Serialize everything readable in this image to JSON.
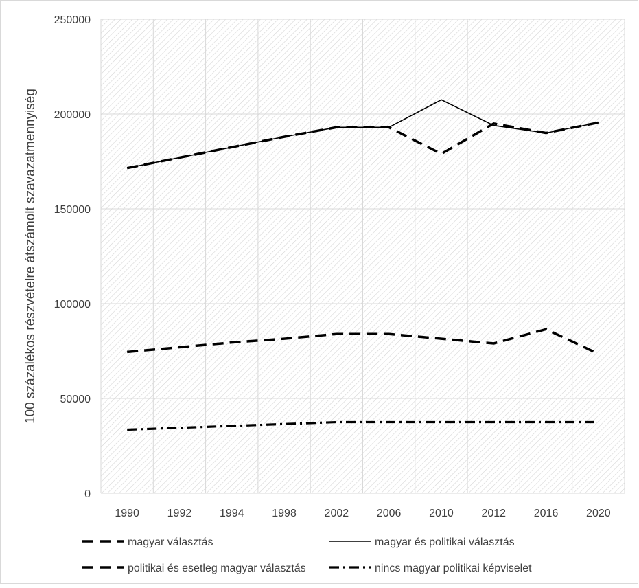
{
  "chart_data": {
    "type": "line",
    "title": "",
    "xlabel": "",
    "ylabel": "100 százalékos részvételre átszámolt szavazatmennyiség",
    "ylim": [
      0,
      250000
    ],
    "yticks": [
      "0",
      "50000",
      "100000",
      "150000",
      "200000",
      "250000"
    ],
    "categories": [
      "1990",
      "1992",
      "1994",
      "1998",
      "2002",
      "2006",
      "2010",
      "2012",
      "2016",
      "2020"
    ],
    "grid": true,
    "legend_position": "bottom",
    "series": [
      {
        "name": "magyar választás",
        "style": "dashed",
        "values": [
          171500,
          177000,
          182500,
          188000,
          193000,
          193000,
          179000,
          195000,
          190000,
          195500
        ]
      },
      {
        "name": "magyar és politikai választás",
        "style": "solid",
        "values": [
          171500,
          177000,
          182500,
          188000,
          193000,
          193000,
          207500,
          194000,
          190000,
          195500
        ]
      },
      {
        "name": "politikai és esetleg magyar választás",
        "style": "dashed",
        "values": [
          74500,
          77000,
          79500,
          81500,
          84000,
          84000,
          81500,
          79000,
          86500,
          73500
        ]
      },
      {
        "name": "nincs magyar politikai képviselet",
        "style": "dash-dot",
        "values": [
          33500,
          34500,
          35500,
          36500,
          37500,
          37500,
          37500,
          37500,
          37500,
          37500
        ]
      }
    ],
    "colors": {
      "line": "#000000",
      "grid": "#d9d9d9",
      "text": "#404040",
      "hatch": "#d4d4d4"
    }
  }
}
